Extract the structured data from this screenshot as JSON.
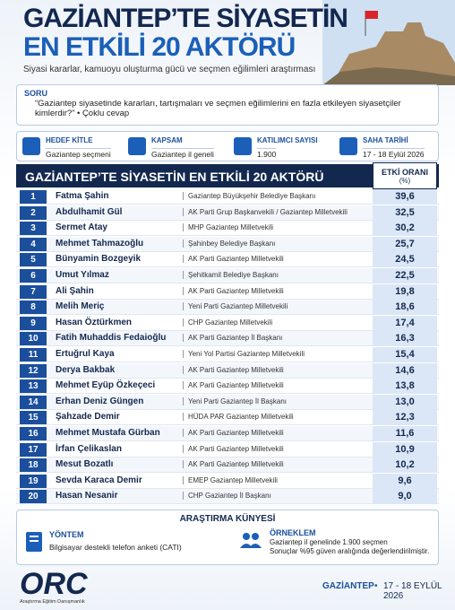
{
  "header": {
    "title_line1": "GAZİANTEP’TE SİYASETİN",
    "title_line2": "EN ETKİLİ 20 AKTÖRÜ",
    "subtitle": "Siyasi kararlar, kamuoyu oluşturma gücü ve seçmen eğilimleri araştırması"
  },
  "question": {
    "label": "SORU",
    "text": "“Gaziantep siyasetinde kararları, tartışmaları ve seçmen eğilimlerini en fazla etkileyen siyasetçiler kimlerdir?” • Çoklu cevap"
  },
  "info": [
    {
      "label": "HEDEF KİTLE",
      "value": "Gaziantep seçmeni"
    },
    {
      "label": "KAPSAM",
      "value": "Gaziantep il geneli"
    },
    {
      "label": "KATILIMCI SAYISI",
      "value": "1.900"
    },
    {
      "label": "SAHA TARİHİ",
      "value": "17 - 18 Eylül 2026"
    }
  ],
  "table": {
    "title": "GAZİANTEP’TE SİYASETİN EN ETKİLİ 20 AKTÖRÜ",
    "value_header": "ETKİ ORANI",
    "value_unit": "(%)",
    "rows": [
      [
        "1",
        "Fatma Şahin",
        "Gaziantep Büyükşehir Belediye Başkanı",
        "39,6"
      ],
      [
        "2",
        "Abdulhamit Gül",
        "AK Parti Grup Başkanvekili / Gaziantep Milletvekili",
        "32,5"
      ],
      [
        "3",
        "Sermet Atay",
        "MHP Gaziantep Milletvekili",
        "30,2"
      ],
      [
        "4",
        "Mehmet Tahmazoğlu",
        "Şahinbey Belediye Başkanı",
        "25,7"
      ],
      [
        "5",
        "Bünyamin Bozgeyik",
        "AK Parti Gaziantep Milletvekili",
        "24,5"
      ],
      [
        "6",
        "Umut Yılmaz",
        "Şehitkamil Belediye Başkanı",
        "22,5"
      ],
      [
        "7",
        "Ali Şahin",
        "AK Parti Gaziantep Milletvekili",
        "19,8"
      ],
      [
        "8",
        "Melih Meriç",
        "Yeni Parti Gaziantep Milletvekili",
        "18,6"
      ],
      [
        "9",
        "Hasan Öztürkmen",
        "CHP Gaziantep Milletvekili",
        "17,4"
      ],
      [
        "10",
        "Fatih Muhaddis Fedaioğlu",
        "AK Parti Gaziantep İl Başkanı",
        "16,3"
      ],
      [
        "11",
        "Ertuğrul Kaya",
        "Yeni Yol Partisi Gaziantep Milletvekili",
        "15,4"
      ],
      [
        "12",
        "Derya Bakbak",
        "AK Parti Gaziantep Milletvekili",
        "14,6"
      ],
      [
        "13",
        "Mehmet Eyüp Özkeçeci",
        "AK Parti Gaziantep Milletvekili",
        "13,8"
      ],
      [
        "14",
        "Erhan Deniz Güngen",
        "Yeni Parti Gaziantep İl Başkanı",
        "13,0"
      ],
      [
        "15",
        "Şahzade Demir",
        "HÜDA PAR Gaziantep Milletvekili",
        "12,3"
      ],
      [
        "16",
        "Mehmet Mustafa Gürban",
        "AK Parti Gaziantep Milletvekili",
        "11,6"
      ],
      [
        "17",
        "İrfan Çelikaslan",
        "AK Parti Gaziantep Milletvekili",
        "10,9"
      ],
      [
        "18",
        "Mesut Bozatlı",
        "AK Parti Gaziantep Milletvekili",
        "10,2"
      ],
      [
        "19",
        "Sevda Karaca Demir",
        "EMEP Gaziantep Milletvekili",
        "9,6"
      ],
      [
        "20",
        "Hasan Nesanir",
        "CHP Gaziantep İl Başkanı",
        "9,0"
      ]
    ]
  },
  "methodology": {
    "title": "ARAŞTIRMA KÜNYESİ",
    "method_label": "YÖNTEM",
    "method_text": "Bilgisayar destekli telefon anketi (CATI)",
    "sample_label": "ÖRNEKLEM",
    "sample_line1": "Gaziantep il genelinde 1.900 seçmen",
    "sample_line2": "Sonuçlar %95 güven aralığında değerlendirilmiştir."
  },
  "footer": {
    "logo": "ORC",
    "logo_sub": "Araştırma Eğitim Danışmanlık",
    "city": "GAZİANTEP",
    "date": "17 - 18 EYLÜL 2026"
  }
}
